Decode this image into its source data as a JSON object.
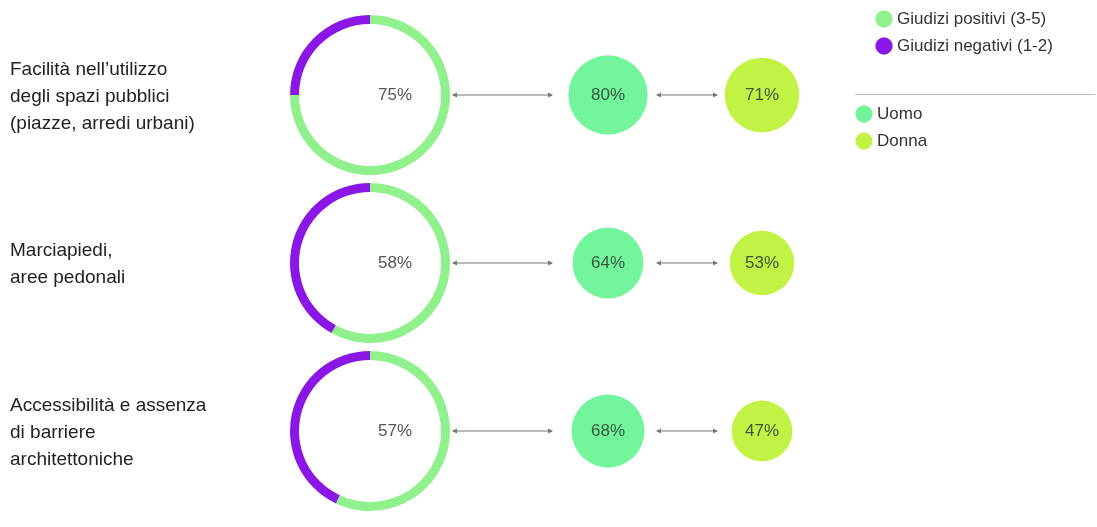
{
  "chart_data": [
    {
      "type": "donut",
      "title": "Facilità nell’utilizzo\ndegli spazi pubblici\n(piazze, arredi urbani)",
      "categories": [
        "Giudizi positivi (3-5)",
        "Giudizi negativi (1-2)"
      ],
      "values": [
        75,
        25
      ],
      "colors": [
        "#90f08c",
        "#8a17e6"
      ],
      "value_labels": [
        "75%",
        null
      ],
      "legend": "top right"
    },
    {
      "type": "other",
      "categories": [
        "Uomo",
        "Donna"
      ],
      "values": [
        80,
        71
      ],
      "colors": [
        "#72f59c",
        "#c2f243"
      ],
      "value_labels": [
        "80%",
        "71%"
      ]
    },
    {
      "type": "donut",
      "title": "Marciapiedi,\naree pedonali",
      "categories": [
        null,
        null
      ],
      "values": [
        58,
        42
      ],
      "colors": [
        "#90f08c",
        "#8a17e6"
      ],
      "value_labels": [
        "58%",
        null
      ]
    },
    {
      "type": "other",
      "categories": [
        null,
        null
      ],
      "values": [
        64,
        53
      ],
      "colors": [
        "#72f59c",
        "#c2f243"
      ],
      "value_labels": [
        "64%",
        "53%"
      ]
    },
    {
      "type": "donut",
      "title": "Accessibilità e assenza\ndi barriere\narchitettoniche",
      "categories": [
        null,
        null
      ],
      "values": [
        57,
        43
      ],
      "colors": [
        "#90f08c",
        "#8a17e6"
      ],
      "value_labels": [
        "57%",
        null
      ]
    },
    {
      "type": "other",
      "categories": [
        null,
        null
      ],
      "values": [
        68,
        47
      ],
      "colors": [
        "#72f59c",
        "#c2f243"
      ],
      "value_labels": [
        "68%",
        "47%"
      ]
    }
  ]
}
